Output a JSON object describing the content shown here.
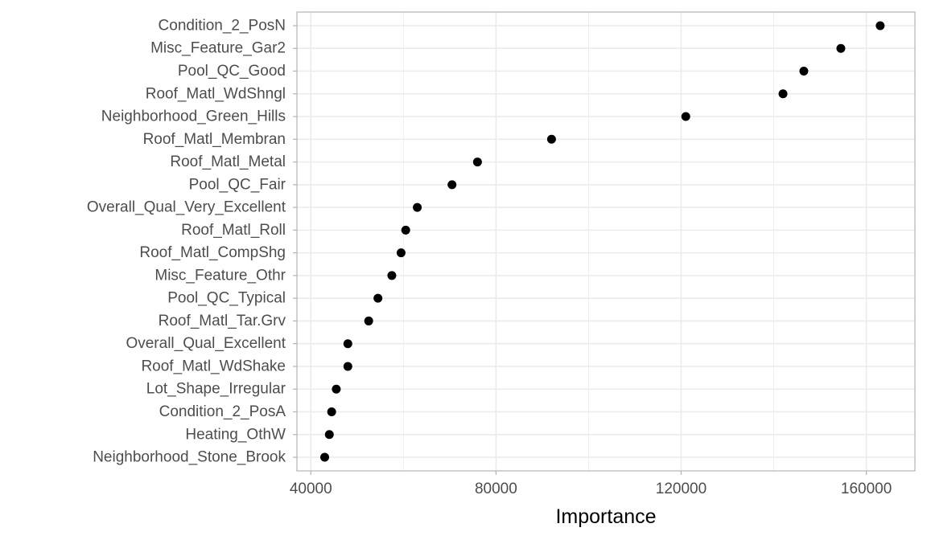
{
  "chart_data": {
    "type": "scatter",
    "title": "",
    "xlabel": "Importance",
    "ylabel": "",
    "xlim": [
      37000,
      170500
    ],
    "x_ticks": [
      40000,
      80000,
      120000,
      160000
    ],
    "x_minor_ticks": [
      60000,
      100000,
      140000
    ],
    "grid": true,
    "legend": "none",
    "colors": {
      "point": "#000000",
      "grid": "#ebebeb",
      "panel_border": "#b3b3b3",
      "tick_text": "#4d4d4d"
    },
    "categories": [
      "Condition_2_PosN",
      "Misc_Feature_Gar2",
      "Pool_QC_Good",
      "Roof_Matl_WdShngl",
      "Neighborhood_Green_Hills",
      "Roof_Matl_Membran",
      "Roof_Matl_Metal",
      "Pool_QC_Fair",
      "Overall_Qual_Very_Excellent",
      "Roof_Matl_Roll",
      "Roof_Matl_CompShg",
      "Misc_Feature_Othr",
      "Pool_QC_Typical",
      "Roof_Matl_Tar.Grv",
      "Overall_Qual_Excellent",
      "Roof_Matl_WdShake",
      "Lot_Shape_Irregular",
      "Condition_2_PosA",
      "Heating_OthW",
      "Neighborhood_Stone_Brook"
    ],
    "values": [
      163000,
      154500,
      146500,
      142000,
      121000,
      92000,
      76000,
      70500,
      63000,
      60500,
      59500,
      57500,
      54500,
      52500,
      48000,
      48000,
      45500,
      44500,
      44000,
      43000
    ]
  }
}
